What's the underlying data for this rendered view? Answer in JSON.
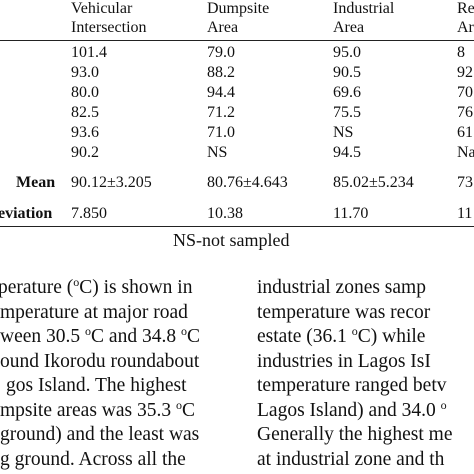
{
  "table": {
    "headers": [
      [
        "Vehicular",
        "Intersection"
      ],
      [
        "Dumpsite",
        "Area"
      ],
      [
        "Industrial",
        "Area"
      ],
      [
        "Re",
        "Ar"
      ]
    ],
    "rows": [
      [
        "101.4",
        "79.0",
        "95.0",
        "8"
      ],
      [
        "93.0",
        "88.2",
        "90.5",
        "92"
      ],
      [
        "80.0",
        "94.4",
        "69.6",
        "70"
      ],
      [
        "82.5",
        "71.2",
        "75.5",
        "76"
      ],
      [
        "93.6",
        "71.0",
        "NS",
        "61"
      ],
      [
        "90.2",
        "NS",
        "94.5",
        "Na"
      ]
    ],
    "mean": {
      "label": "Mean",
      "values": [
        "90.12±3.205",
        "80.76±4.643",
        "85.02±5.234",
        "73"
      ]
    },
    "std": {
      "label": "eviation",
      "values": [
        "7.850",
        "10.38",
        "11.70",
        "11"
      ]
    },
    "note": "NS-not sampled"
  },
  "left_column": [
    {
      "pre": "perature (",
      "sup": "o",
      "post": "C) is shown in"
    },
    {
      "pre": "mperature at major road",
      "sup": "",
      "post": ""
    },
    {
      "pre": "ween 30.5 ",
      "sup": "o",
      "post": "C and 34.8 ",
      "sup2": "o"
    },
    {
      "pre": "ound Ikorodu roundabout",
      "sup": "",
      "post": ""
    },
    {
      "pre": "gos Island. The highest",
      "sup": "",
      "post": ""
    },
    {
      "pre": "mpsite areas was 35.3 ",
      "sup": "o",
      "post": "C"
    },
    {
      "pre": "ground) and the least was",
      "sup": "",
      "post": ""
    },
    {
      "pre": "g ground.  Across all the",
      "sup": "",
      "post": ""
    }
  ],
  "right_column": [
    {
      "pre": "industrial  zones  samp",
      "sup": "",
      "post": ""
    },
    {
      "pre": "temperature  was  recor",
      "sup": "",
      "post": ""
    },
    {
      "pre": "estate  (36.1  ",
      "sup": "o",
      "post": "C)  while"
    },
    {
      "pre": "industries  in  Lagos  IsI",
      "sup": "",
      "post": ""
    },
    {
      "pre": "temperature  ranged  betv",
      "sup": "",
      "post": ""
    },
    {
      "pre": "Lagos Island) and 34.0 ",
      "sup": "o",
      "post": ""
    },
    {
      "pre": "Generally the highest me",
      "sup": "",
      "post": ""
    },
    {
      "pre": "at industrial zone and th",
      "sup": "",
      "post": ""
    }
  ]
}
